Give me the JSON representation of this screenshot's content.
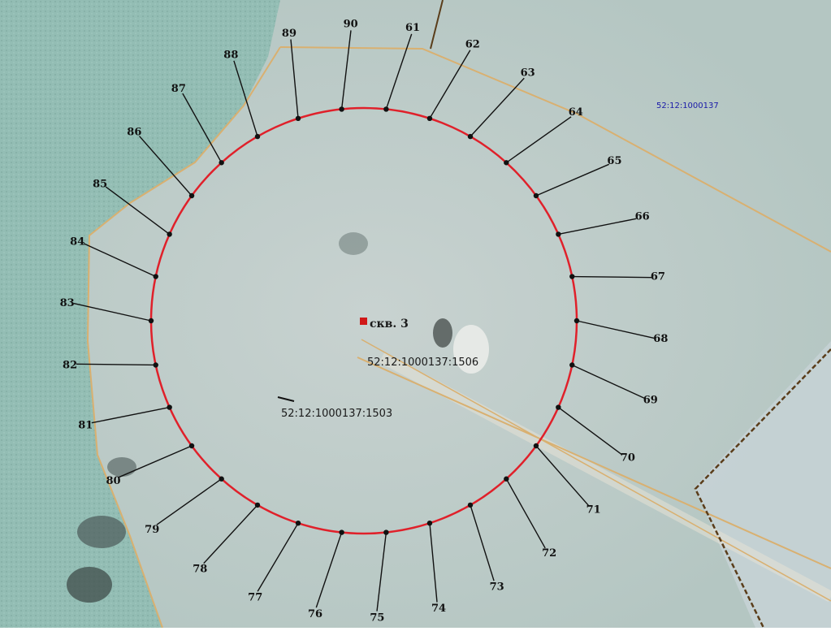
{
  "map": {
    "well_label": "скв. 3",
    "parcel_labels": [
      "52:12:1000137:1506",
      "52:12:1000137:1503",
      "52:12:1000137"
    ],
    "colors": {
      "circle": "#e0202a",
      "vertex": "#111111",
      "leader": "#111111",
      "parcel_boundary": "#d9b070",
      "parcel_boundary_dark": "#5a3d1a",
      "well_marker": "#d01818",
      "terrain_main": "#b8c8c4",
      "terrain_water": "#8fbcb2",
      "terrain_right": "#c4cfd2",
      "top_right_label": "#1a1aa8"
    },
    "vertex_labels": [
      "61",
      "62",
      "63",
      "64",
      "65",
      "66",
      "67",
      "68",
      "69",
      "70",
      "71",
      "72",
      "73",
      "74",
      "75",
      "76",
      "77",
      "78",
      "79",
      "80",
      "81",
      "82",
      "83",
      "84",
      "85",
      "86",
      "87",
      "88",
      "89",
      "90"
    ]
  }
}
